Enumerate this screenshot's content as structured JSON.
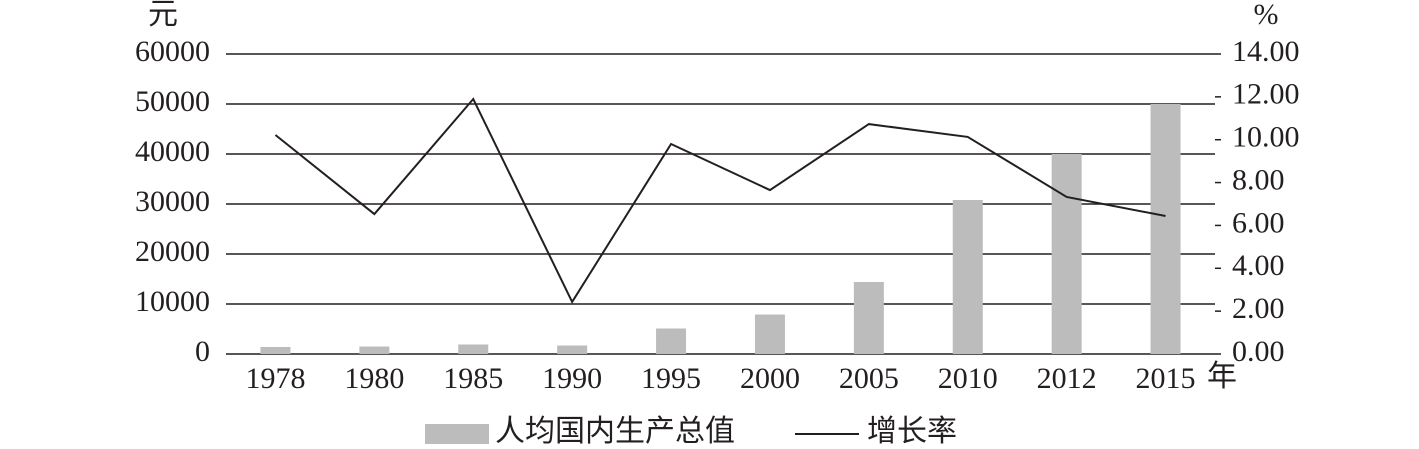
{
  "chart_data": {
    "type": "bar_line",
    "y_label": "元",
    "y2_label": "%",
    "x_label": "年",
    "categories": [
      "1978",
      "1980",
      "1985",
      "1990",
      "1995",
      "2000",
      "2005",
      "2010",
      "2012",
      "2015"
    ],
    "series": [
      {
        "name": "人均国内生产总值",
        "type": "bar",
        "color": "#bcbcbc",
        "values": [
          1400,
          1500,
          1900,
          1700,
          5100,
          7900,
          14400,
          30800,
          40000,
          50000
        ]
      },
      {
        "name": "增长率",
        "type": "line",
        "axis": "y2",
        "color": "#231f20",
        "values": [
          10.22,
          6.53,
          11.9,
          2.43,
          9.8,
          7.65,
          10.73,
          10.13,
          7.33,
          6.44
        ]
      }
    ],
    "ylim": [
      0,
      60000
    ],
    "yticks": [
      0,
      10000,
      20000,
      30000,
      40000,
      50000,
      60000
    ],
    "y2lim": [
      0,
      14
    ],
    "y2ticks": [
      {
        "value": 0,
        "label": "0.00"
      },
      {
        "value": 2,
        "label": "2.00"
      },
      {
        "value": 4,
        "label": "4.00"
      },
      {
        "value": 6,
        "label": "6.00"
      },
      {
        "value": 8,
        "label": "8.00"
      },
      {
        "value": 10,
        "label": "10.00"
      },
      {
        "value": 12,
        "label": "12.00"
      },
      {
        "value": 14,
        "label": "14.00"
      }
    ],
    "grid": true
  }
}
